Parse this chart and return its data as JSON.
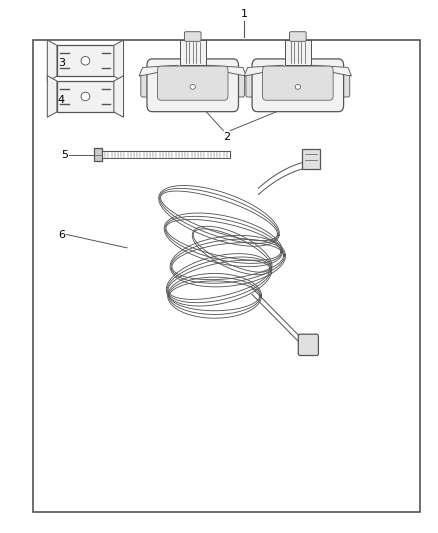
{
  "bg_color": "#ffffff",
  "border_color": "#555555",
  "line_color": "#555555",
  "label_color": "#000000",
  "fig_width": 4.38,
  "fig_height": 5.33,
  "dpi": 100,
  "outer_border": [
    0.075,
    0.04,
    0.885,
    0.885
  ]
}
